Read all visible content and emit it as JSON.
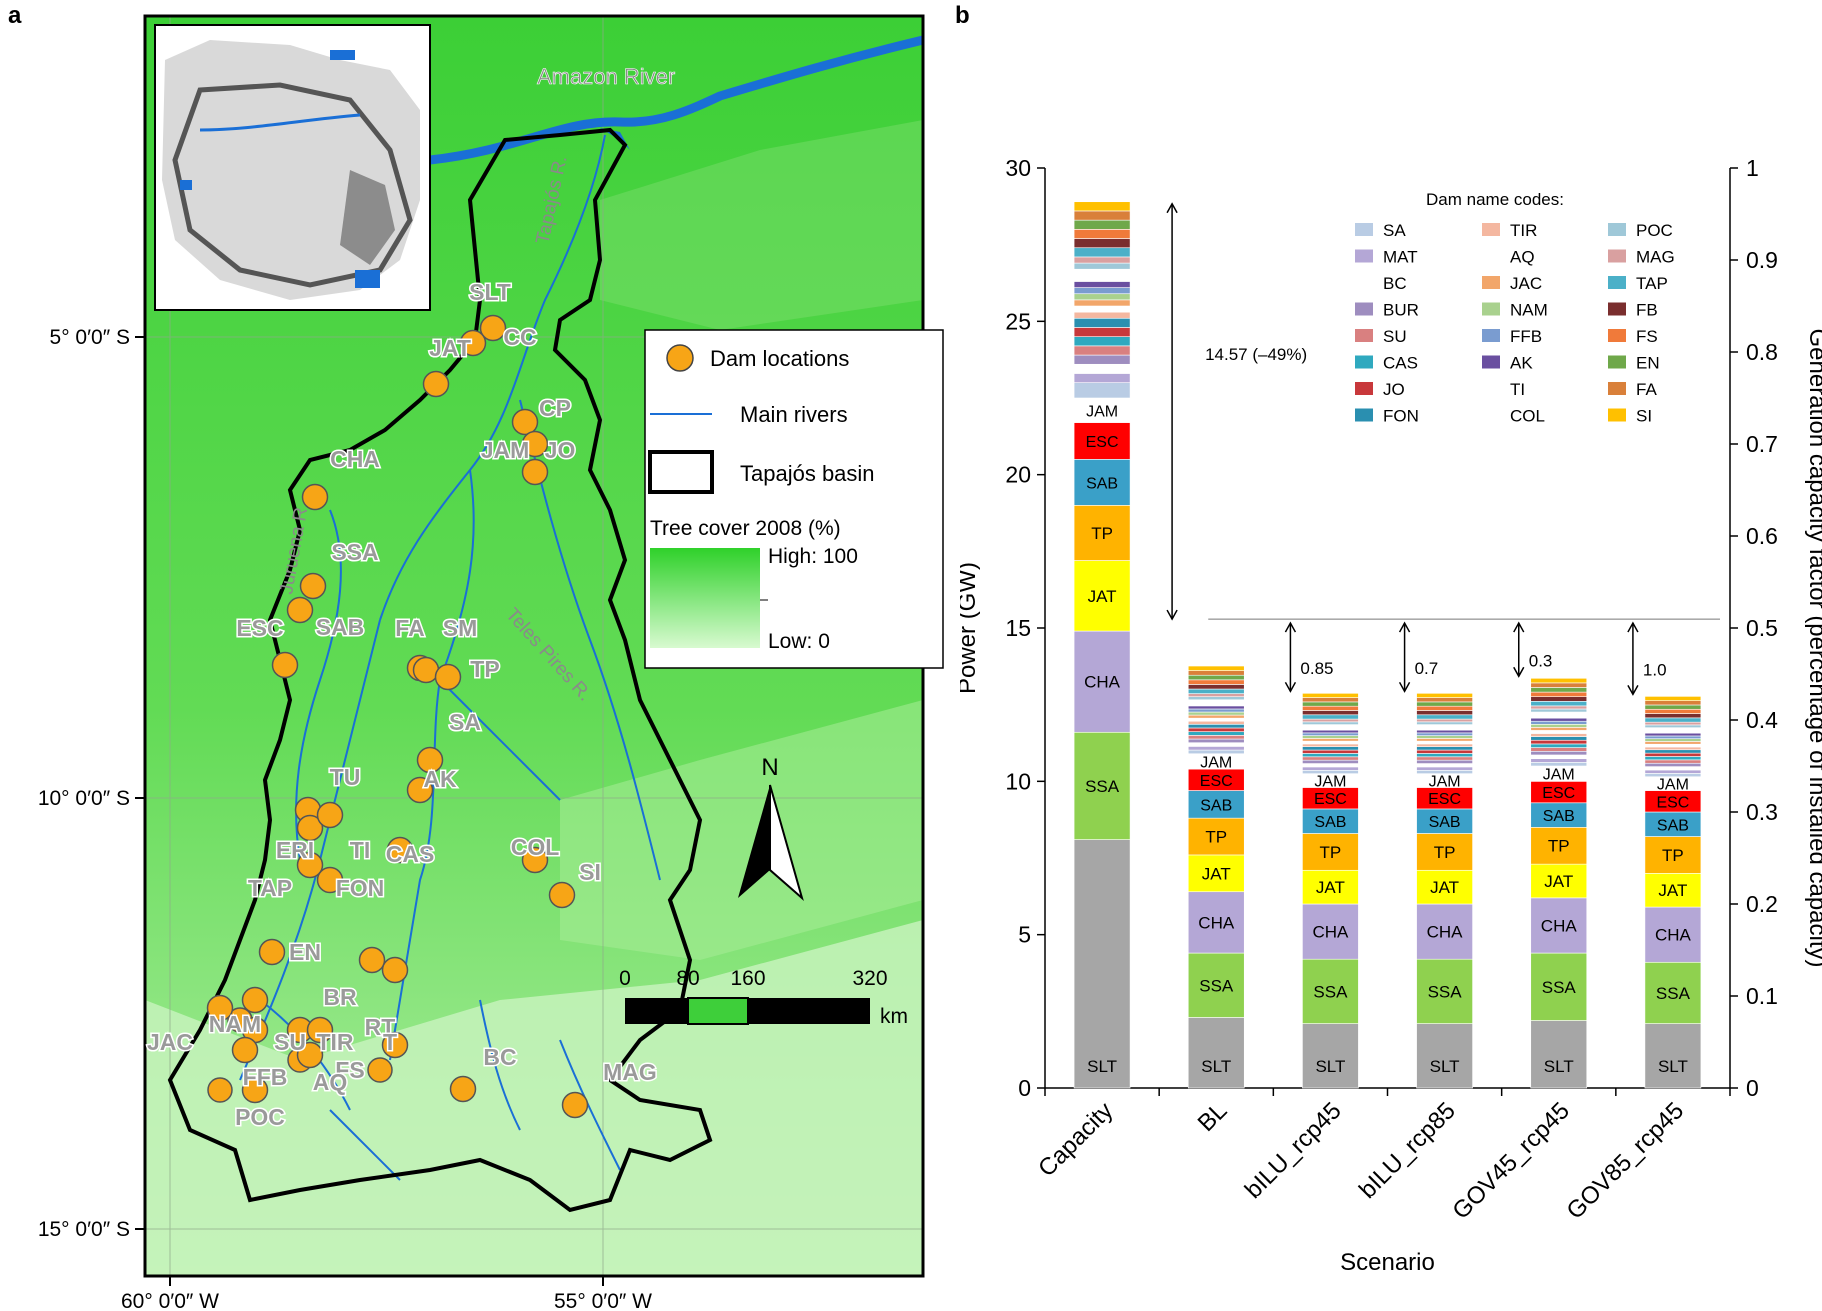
{
  "panel_a": {
    "letter": "a",
    "river_label": "Amazon River",
    "river_labels": {
      "tapajos": "Tapajós R.",
      "juruena": "Juruena R.",
      "teles_pires": "Teles Pires R."
    },
    "lat_labels": [
      "5° 0′0″ S",
      "10° 0′0″ S",
      "15° 0′0″ S"
    ],
    "lon_labels": [
      "60° 0′0″ W",
      "55° 0′0″ W"
    ],
    "legend": {
      "dam": "Dam locations",
      "rivers": "Main rivers",
      "basin": "Tapajós basin",
      "tree_cover_title": "Tree cover 2008 (%)",
      "high": "High: 100",
      "low": "Low: 0"
    },
    "scale": {
      "ticks": [
        "0",
        "80",
        "160",
        "320"
      ],
      "unit": "km"
    },
    "north": "N",
    "dam_labels": [
      "SLT",
      "CC",
      "JAT",
      "CP",
      "JO",
      "JAM",
      "CHA",
      "SSA",
      "SAB",
      "ESC",
      "FA",
      "SM",
      "TP",
      "SA",
      "AK",
      "TU",
      "ERI",
      "TI",
      "CAS",
      "COL",
      "SI",
      "TAP",
      "FON",
      "EN",
      "NAM",
      "BR",
      "RT",
      "JAC",
      "SU",
      "TIR",
      "T",
      "FFB",
      "FS",
      "AQ",
      "BC",
      "MAG",
      "POC"
    ],
    "colors": {
      "forest": "#3ecf3a",
      "sparse": "#bdf0b0",
      "dam": "#f7a516",
      "river": "#1a6fd6",
      "basin": "#000000"
    }
  },
  "panel_b": {
    "letter": "b"
  },
  "chart_data": {
    "type": "bar",
    "stacked": true,
    "xlabel": "Scenario",
    "ylabel": "Power (GW)",
    "y2label": "Generation capacity factor (percentage of installed capacity)",
    "ylim": [
      0,
      30
    ],
    "yticks": [
      0,
      5,
      10,
      15,
      20,
      25,
      30
    ],
    "y2lim": [
      0,
      1
    ],
    "y2ticks": [
      "0",
      "0.1",
      "0.2",
      "0.3",
      "0.4",
      "0.5",
      "0.6",
      "0.7",
      "0.8",
      "0.9",
      "1"
    ],
    "categories": [
      "Capacity",
      "BL",
      "bILU_rcp45",
      "bILU_rcp85",
      "GOV45_rcp45",
      "GOV85_rcp45"
    ],
    "series": [
      {
        "name": "SLT",
        "color": "#a6a6a6",
        "values": [
          8.1,
          2.3,
          2.1,
          2.1,
          2.2,
          2.1
        ]
      },
      {
        "name": "SSA",
        "color": "#8fd14f",
        "values": [
          3.5,
          2.1,
          2.1,
          2.1,
          2.2,
          2.0
        ]
      },
      {
        "name": "CHA",
        "color": "#b4a7d6",
        "values": [
          3.3,
          2.0,
          1.8,
          1.8,
          1.8,
          1.8
        ]
      },
      {
        "name": "JAT",
        "color": "#ffff00",
        "values": [
          2.3,
          1.2,
          1.1,
          1.1,
          1.1,
          1.1
        ]
      },
      {
        "name": "TP",
        "color": "#ffb300",
        "values": [
          1.8,
          1.2,
          1.2,
          1.2,
          1.2,
          1.2
        ]
      },
      {
        "name": "SAB",
        "color": "#3aa0c8",
        "values": [
          1.5,
          0.9,
          0.8,
          0.8,
          0.8,
          0.8
        ]
      },
      {
        "name": "ESC",
        "color": "#ff0000",
        "values": [
          1.2,
          0.7,
          0.7,
          0.7,
          0.7,
          0.7
        ]
      },
      {
        "name": "JAM",
        "color": "#ffffff",
        "values": [
          0.8,
          0.5,
          0.45,
          0.45,
          0.5,
          0.45
        ]
      },
      {
        "name": "SA",
        "color": "#b9cce4",
        "values": [
          0.5,
          0.12,
          0.11,
          0.11,
          0.12,
          0.11
        ]
      },
      {
        "name": "MAT",
        "color": "#b4a7d6",
        "values": [
          0.3,
          0.12,
          0.11,
          0.11,
          0.12,
          0.11
        ]
      },
      {
        "name": "BC",
        "color": "#ffffff",
        "values": [
          0.3,
          0.12,
          0.11,
          0.11,
          0.12,
          0.11
        ]
      },
      {
        "name": "BUR",
        "color": "#9e8dbf",
        "values": [
          0.3,
          0.12,
          0.11,
          0.11,
          0.12,
          0.11
        ]
      },
      {
        "name": "SU",
        "color": "#d98080",
        "values": [
          0.3,
          0.12,
          0.11,
          0.11,
          0.12,
          0.11
        ]
      },
      {
        "name": "CAS",
        "color": "#2fa9bf",
        "values": [
          0.3,
          0.12,
          0.11,
          0.11,
          0.12,
          0.11
        ]
      },
      {
        "name": "JO",
        "color": "#c8383b",
        "values": [
          0.3,
          0.12,
          0.11,
          0.11,
          0.12,
          0.11
        ]
      },
      {
        "name": "FON",
        "color": "#2a8fb0",
        "values": [
          0.3,
          0.12,
          0.11,
          0.11,
          0.12,
          0.11
        ]
      },
      {
        "name": "TIR",
        "color": "#f4b7a0",
        "values": [
          0.2,
          0.1,
          0.09,
          0.09,
          0.1,
          0.09
        ]
      },
      {
        "name": "AQ",
        "color": "#ffffff",
        "values": [
          0.2,
          0.1,
          0.09,
          0.09,
          0.1,
          0.09
        ]
      },
      {
        "name": "JAC",
        "color": "#f2a66a",
        "values": [
          0.2,
          0.1,
          0.09,
          0.09,
          0.1,
          0.09
        ]
      },
      {
        "name": "NAM",
        "color": "#a9d18e",
        "values": [
          0.2,
          0.1,
          0.09,
          0.09,
          0.1,
          0.09
        ]
      },
      {
        "name": "FFB",
        "color": "#7a9cd0",
        "values": [
          0.2,
          0.1,
          0.09,
          0.09,
          0.1,
          0.09
        ]
      },
      {
        "name": "AK",
        "color": "#6a4fa0",
        "values": [
          0.2,
          0.1,
          0.09,
          0.09,
          0.1,
          0.09
        ]
      },
      {
        "name": "TI",
        "color": "#ffffff",
        "values": [
          0.2,
          0.1,
          0.09,
          0.09,
          0.1,
          0.09
        ]
      },
      {
        "name": "COL",
        "color": "#ffffff",
        "values": [
          0.2,
          0.1,
          0.09,
          0.09,
          0.1,
          0.09
        ]
      },
      {
        "name": "POC",
        "color": "#9fc8d8",
        "values": [
          0.2,
          0.1,
          0.09,
          0.09,
          0.1,
          0.09
        ]
      },
      {
        "name": "MAG",
        "color": "#d9a0a0",
        "values": [
          0.2,
          0.1,
          0.09,
          0.09,
          0.1,
          0.09
        ]
      },
      {
        "name": "TAP",
        "color": "#4bb0c8",
        "values": [
          0.3,
          0.15,
          0.14,
          0.14,
          0.15,
          0.14
        ]
      },
      {
        "name": "FB",
        "color": "#7a2e2e",
        "values": [
          0.3,
          0.15,
          0.14,
          0.14,
          0.15,
          0.14
        ]
      },
      {
        "name": "FS",
        "color": "#f07a3a",
        "values": [
          0.3,
          0.15,
          0.14,
          0.14,
          0.15,
          0.14
        ]
      },
      {
        "name": "EN",
        "color": "#6fa84a",
        "values": [
          0.3,
          0.15,
          0.14,
          0.14,
          0.15,
          0.14
        ]
      },
      {
        "name": "FA",
        "color": "#d9803a",
        "values": [
          0.3,
          0.15,
          0.14,
          0.14,
          0.15,
          0.14
        ]
      },
      {
        "name": "SI",
        "color": "#ffc000",
        "values": [
          0.3,
          0.15,
          0.14,
          0.14,
          0.15,
          0.14
        ]
      }
    ],
    "segment_labels": [
      "SLT",
      "SSA",
      "CHA",
      "JAT",
      "TP",
      "SAB",
      "ESC",
      "JAM"
    ],
    "reference_value": 14.9,
    "annotations": [
      {
        "category": "Capacity",
        "text": "14.57 (–49%)"
      },
      {
        "category": "bILU_rcp45",
        "text": "0.85"
      },
      {
        "category": "bILU_rcp85",
        "text": "0.7"
      },
      {
        "category": "GOV45_rcp45",
        "text": "0.3"
      },
      {
        "category": "GOV85_rcp45",
        "text": "1.0"
      }
    ],
    "legend_title": "Dam name codes:",
    "legend_columns": [
      [
        "SA",
        "MAT",
        "BC",
        "BUR",
        "SU",
        "CAS",
        "JO",
        "FON"
      ],
      [
        "TIR",
        "AQ",
        "JAC",
        "NAM",
        "FFB",
        "AK",
        "TI",
        "COL"
      ],
      [
        "POC",
        "MAG",
        "TAP",
        "FB",
        "FS",
        "EN",
        "FA",
        "SI"
      ]
    ]
  }
}
